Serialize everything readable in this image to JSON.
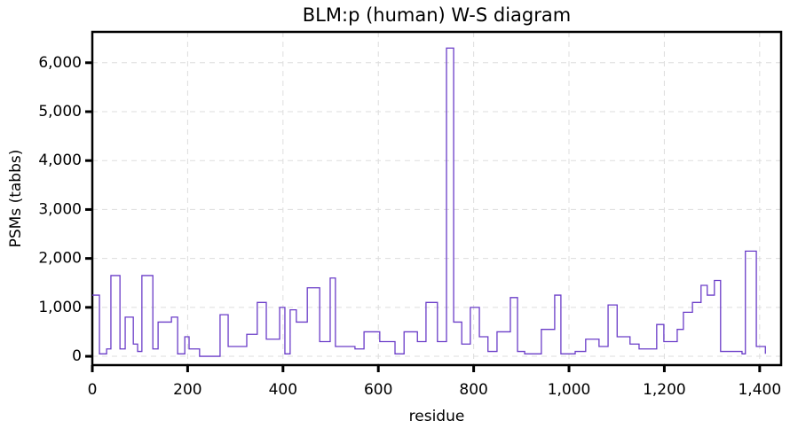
{
  "chart_data": {
    "type": "line",
    "step": "post",
    "title": "BLM:p (human) W-S diagram",
    "xlabel": "residue",
    "ylabel": "PSMs (tabbs)",
    "x": [
      0,
      15,
      30,
      39,
      58,
      69,
      86,
      95,
      104,
      127,
      138,
      166,
      179,
      194,
      203,
      225,
      268,
      285,
      324,
      346,
      365,
      393,
      404,
      415,
      428,
      451,
      477,
      499,
      510,
      551,
      570,
      603,
      635,
      654,
      682,
      700,
      724,
      743,
      758,
      775,
      793,
      812,
      830,
      849,
      877,
      892,
      907,
      942,
      970,
      983,
      1013,
      1035,
      1063,
      1082,
      1101,
      1128,
      1147,
      1184,
      1199,
      1227,
      1240,
      1259,
      1277,
      1290,
      1305,
      1318,
      1333,
      1363,
      1370,
      1393,
      1412
    ],
    "series": [
      {
        "name": "PSMs",
        "color": "#6a3cc8",
        "values": [
          1250,
          50,
          150,
          1650,
          150,
          800,
          250,
          100,
          1650,
          150,
          700,
          800,
          50,
          400,
          150,
          0,
          850,
          200,
          450,
          1100,
          350,
          1000,
          50,
          950,
          700,
          1400,
          300,
          1600,
          200,
          150,
          500,
          300,
          50,
          500,
          300,
          1100,
          300,
          6300,
          700,
          250,
          1000,
          400,
          100,
          500,
          1200,
          100,
          50,
          550,
          1250,
          50,
          100,
          350,
          200,
          1050,
          400,
          250,
          150,
          650,
          300,
          550,
          900,
          1100,
          1450,
          1250,
          1550,
          100,
          100,
          50,
          2150,
          200,
          50
        ]
      }
    ],
    "xlim": [
      0,
      1445
    ],
    "ylim": [
      -180,
      6630
    ],
    "xticks": [
      0,
      200,
      400,
      600,
      800,
      {
        "value": 1000,
        "label": "1,000"
      },
      {
        "value": 1200,
        "label": "1,200"
      },
      {
        "value": 1400,
        "label": "1,400"
      }
    ],
    "yticks": [
      0,
      {
        "value": 1000,
        "label": "1,000"
      },
      {
        "value": 2000,
        "label": "2,000"
      },
      {
        "value": 3000,
        "label": "3,000"
      },
      {
        "value": 4000,
        "label": "4,000"
      },
      {
        "value": 5000,
        "label": "5,000"
      },
      {
        "value": 6000,
        "label": "6,000"
      }
    ],
    "grid": true
  }
}
